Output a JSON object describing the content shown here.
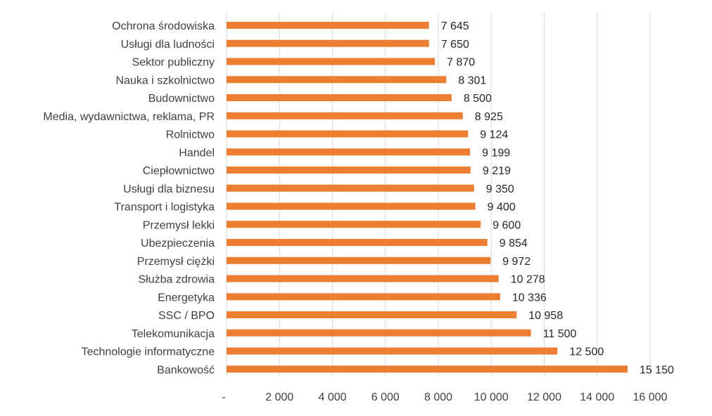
{
  "chart_data": {
    "type": "bar",
    "orientation": "horizontal",
    "categories": [
      "Ochrona środowiska",
      "Usługi dla ludności",
      "Sektor publiczny",
      "Nauka i szkolnictwo",
      "Budownictwo",
      "Media, wydawnictwa, reklama, PR",
      "Rolnictwo",
      "Handel",
      "Ciepłownictwo",
      "Usługi dla biznesu",
      "Transport i logistyka",
      "Przemysł lekki",
      "Ubezpieczenia",
      "Przemysł ciężki",
      "Służba zdrowia",
      "Energetyka",
      "SSC / BPO",
      "Telekomunikacja",
      "Technologie informatyczne",
      "Bankowość"
    ],
    "values": [
      7645,
      7650,
      7870,
      8301,
      8500,
      8925,
      9124,
      9199,
      9219,
      9350,
      9400,
      9600,
      9854,
      9972,
      10278,
      10336,
      10958,
      11500,
      12500,
      15150
    ],
    "value_labels": [
      "7 645",
      "7 650",
      "7 870",
      "8 301",
      "8 500",
      "8 925",
      "9 124",
      "9 199",
      "9 219",
      "9 350",
      "9 400",
      "9 600",
      "9 854",
      "9 972",
      "10 278",
      "10 336",
      "10 958",
      "11 500",
      "12 500",
      "15 150"
    ],
    "x_ticks": [
      0,
      2000,
      4000,
      6000,
      8000,
      10000,
      12000,
      14000,
      16000
    ],
    "x_tick_labels": [
      "-",
      "2 000",
      "4 000",
      "6 000",
      "8 000",
      "10 000",
      "12 000",
      "14 000",
      "16 000"
    ],
    "xlim": [
      0,
      16000
    ],
    "grid": true,
    "legend": "none",
    "bar_color": "#ED7D31",
    "title": "",
    "xlabel": "",
    "ylabel": ""
  }
}
